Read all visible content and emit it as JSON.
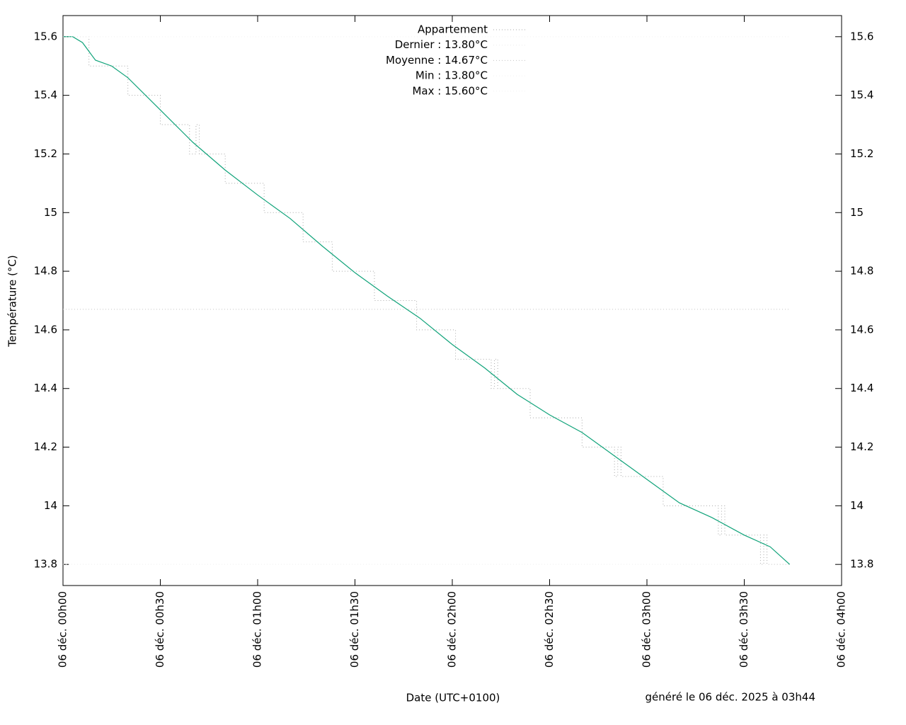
{
  "chart_data": {
    "type": "line",
    "xlabel": "Date (UTC+0100)",
    "ylabel": "Température (°C)",
    "footer": "généré le 06 déc. 2025 à 03h44",
    "xlim": [
      0,
      240
    ],
    "xticks": [
      {
        "value": 0,
        "label": "06 déc. 00h00"
      },
      {
        "value": 30,
        "label": "06 déc. 00h30"
      },
      {
        "value": 60,
        "label": "06 déc. 01h00"
      },
      {
        "value": 90,
        "label": "06 déc. 01h30"
      },
      {
        "value": 120,
        "label": "06 déc. 02h00"
      },
      {
        "value": 150,
        "label": "06 déc. 02h30"
      },
      {
        "value": 180,
        "label": "06 déc. 03h00"
      },
      {
        "value": 210,
        "label": "06 déc. 03h30"
      },
      {
        "value": 240,
        "label": "06 déc. 04h00"
      }
    ],
    "ylim": [
      13.728,
      15.672
    ],
    "yticks": [
      13.8,
      14,
      14.2,
      14.4,
      14.6,
      14.8,
      15,
      15.2,
      15.4,
      15.6
    ],
    "series": [
      {
        "name": "Appartement",
        "color": "#a8a8a8",
        "step": true,
        "x": [
          0,
          8,
          20,
          30,
          39,
          41,
          42,
          50,
          62,
          74,
          83,
          96,
          109,
          121,
          132,
          133,
          134,
          144,
          160,
          170,
          171,
          172,
          185,
          202,
          203,
          204,
          215,
          216,
          217,
          224
        ],
        "values": [
          15.6,
          15.5,
          15.4,
          15.3,
          15.2,
          15.3,
          15.2,
          15.1,
          15.0,
          14.9,
          14.8,
          14.7,
          14.6,
          14.5,
          14.4,
          14.5,
          14.4,
          14.3,
          14.2,
          14.1,
          14.2,
          14.1,
          14.0,
          13.9,
          14.0,
          13.9,
          13.8,
          13.9,
          13.8,
          13.8
        ]
      },
      {
        "color": "#10a37a",
        "x": [
          0,
          3,
          6,
          10,
          15,
          20,
          30,
          40,
          50,
          60,
          70,
          80,
          90,
          100,
          110,
          120,
          130,
          140,
          150,
          160,
          170,
          180,
          190,
          200,
          210,
          218,
          224
        ],
        "values": [
          15.6,
          15.6,
          15.58,
          15.52,
          15.5,
          15.46,
          15.35,
          15.24,
          15.145,
          15.06,
          14.98,
          14.885,
          14.795,
          14.715,
          14.64,
          14.55,
          14.47,
          14.38,
          14.31,
          14.25,
          14.17,
          14.09,
          14.01,
          13.96,
          13.9,
          13.86,
          13.8
        ]
      }
    ],
    "reference_lines": [
      {
        "name": "Dernier : 13.80°C",
        "value": 13.8,
        "color": "#ececec"
      },
      {
        "name": "Moyenne : 14.67°C",
        "value": 14.67,
        "color": "#c4c4c4"
      },
      {
        "name": "Min : 13.80°C",
        "value": 13.8,
        "color": "#f2f2f2"
      },
      {
        "name": "Max : 15.60°C",
        "value": 15.6,
        "color": "#f2f2f2"
      }
    ]
  }
}
